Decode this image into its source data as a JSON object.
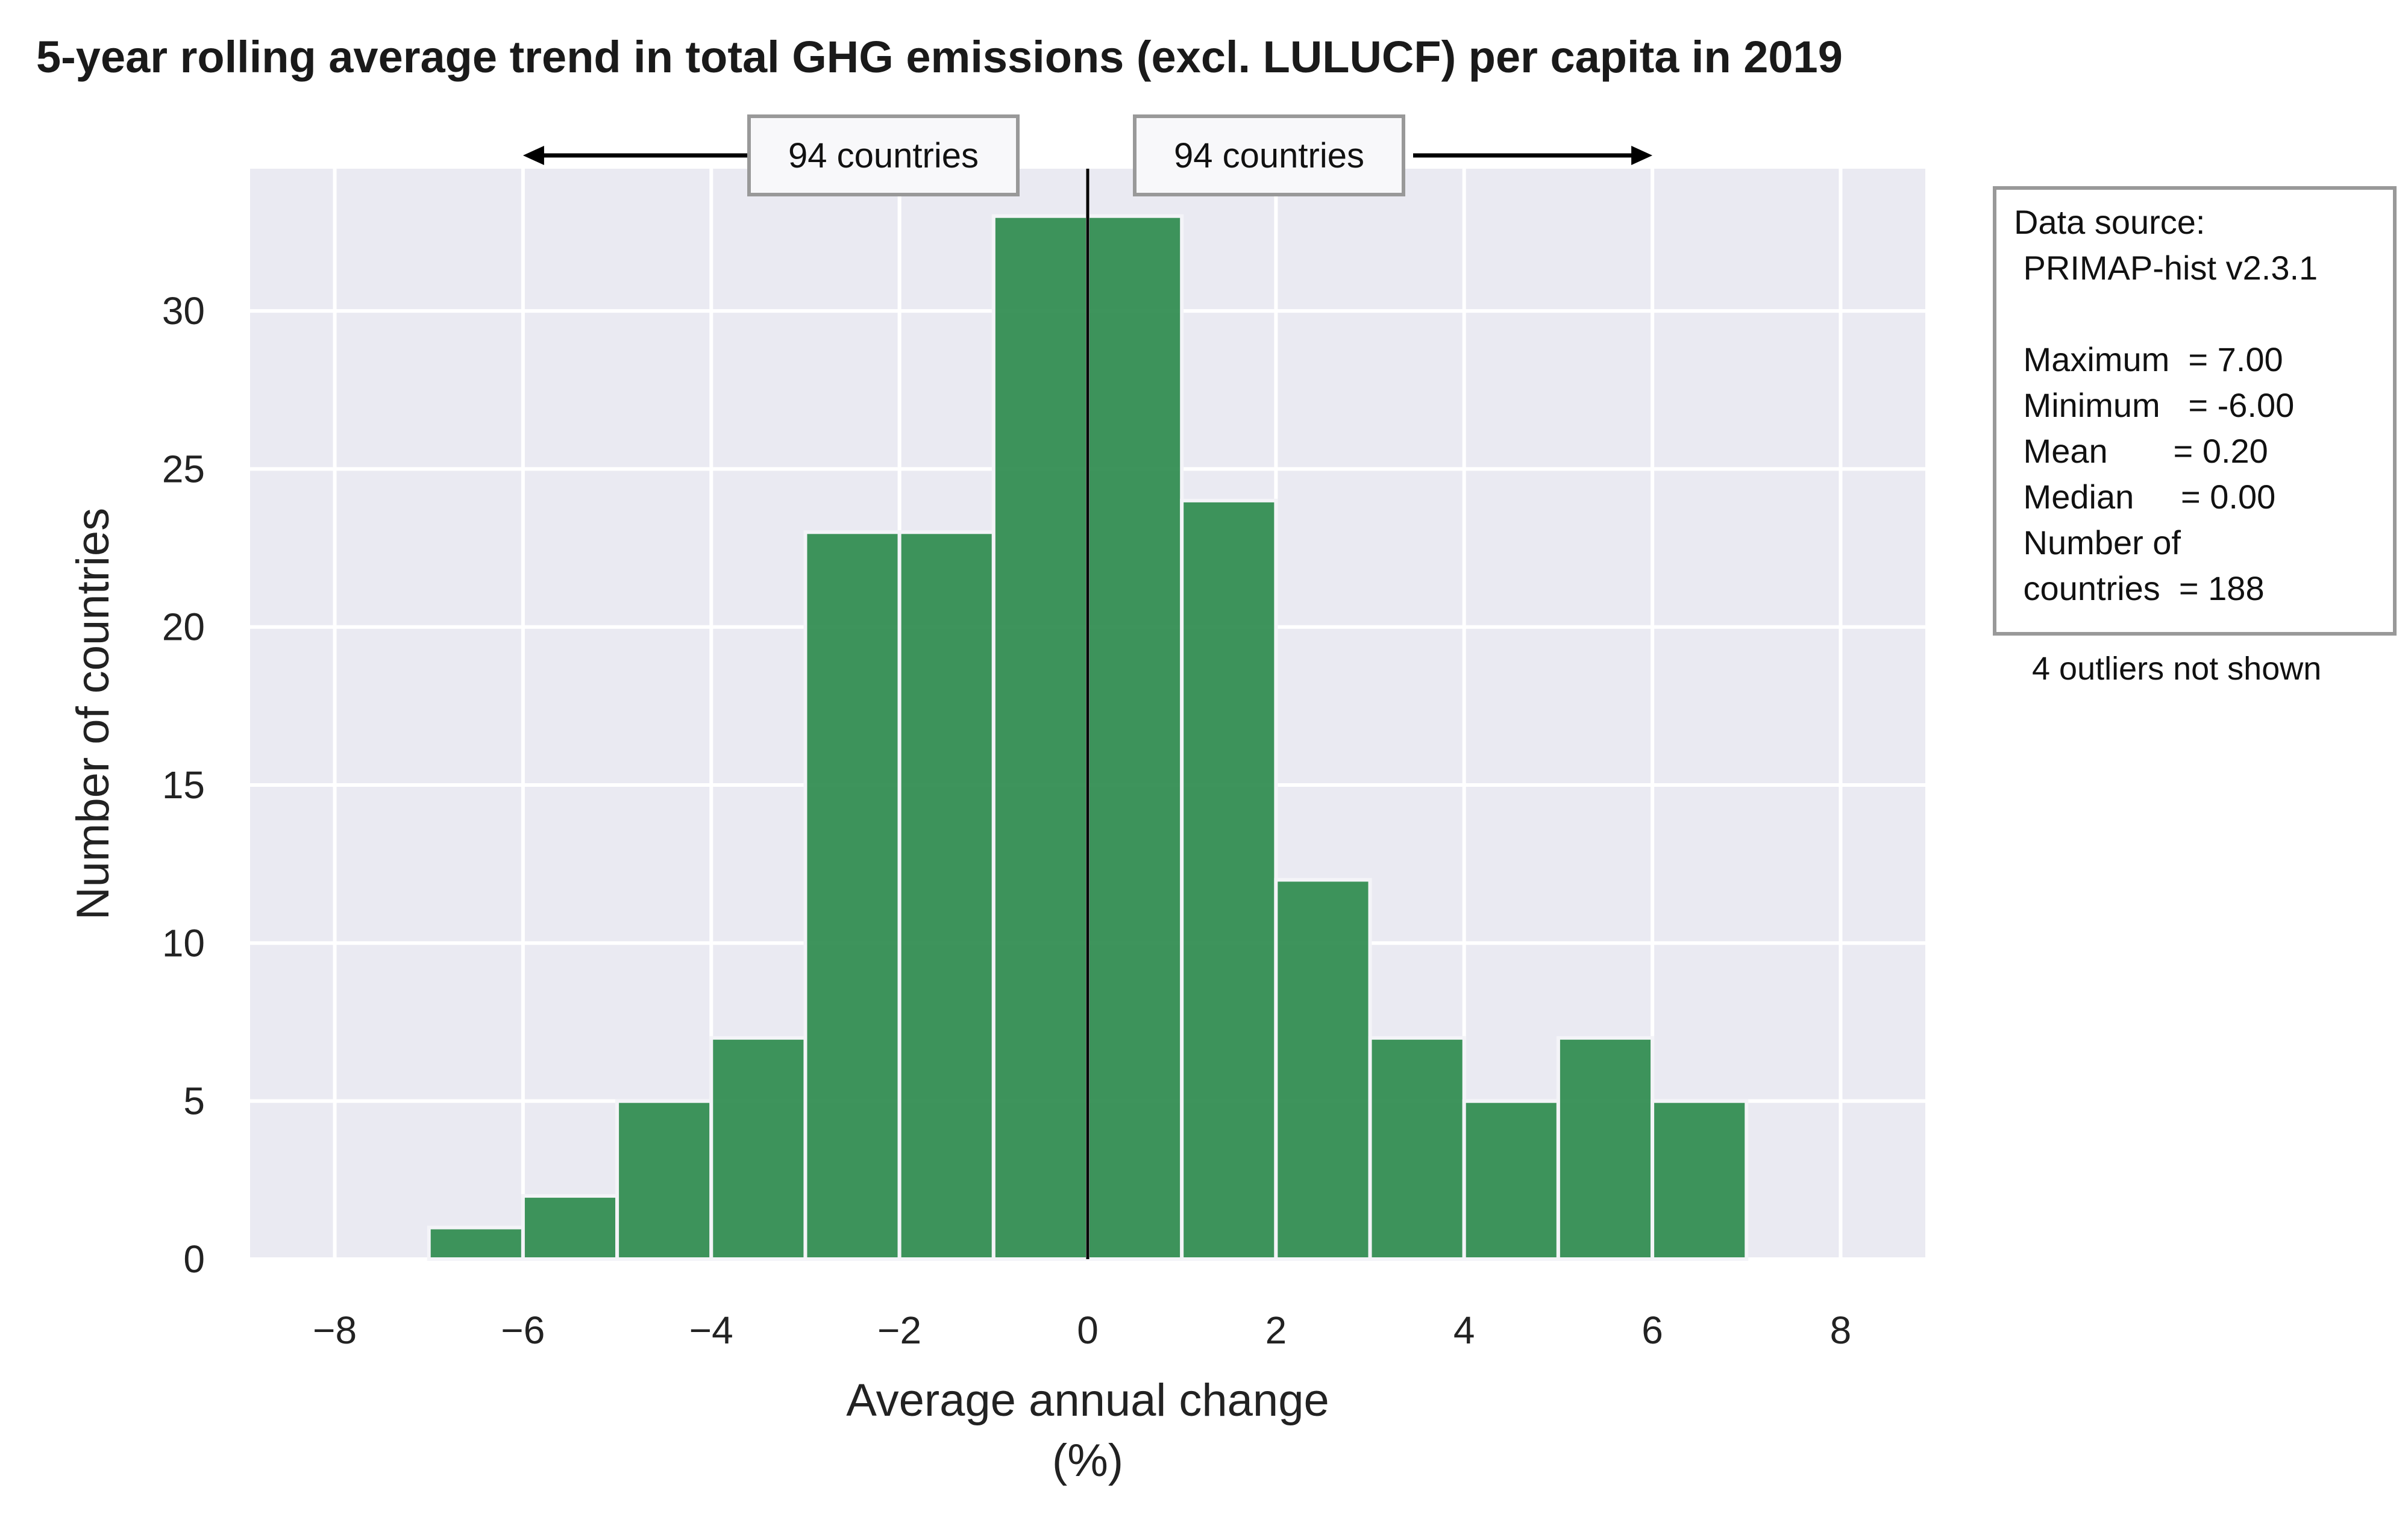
{
  "chart_data": {
    "type": "bar",
    "title": "5-year rolling average trend in total GHG emissions (excl. LULUCF) per capita in 2019",
    "xlabel": [
      "Average annual change",
      "(%)"
    ],
    "ylabel": "Number of countries",
    "xlim": [
      -8.9,
      8.9
    ],
    "ylim": [
      0,
      34.5
    ],
    "xticks": [
      -8,
      -6,
      -4,
      -2,
      0,
      2,
      4,
      6,
      8
    ],
    "xtick_labels": [
      "−8",
      "−6",
      "−4",
      "−2",
      "0",
      "2",
      "4",
      "6",
      "8"
    ],
    "yticks": [
      0,
      5,
      10,
      15,
      20,
      25,
      30
    ],
    "ytick_labels": [
      "0",
      "5",
      "10",
      "15",
      "20",
      "25",
      "30"
    ],
    "grid": true,
    "bar_color": "#2e8b4e",
    "background_color": "#eaeaf2",
    "reference_line_x": 0,
    "bins": [
      {
        "start": -7.0,
        "end": -6.0,
        "count": 1
      },
      {
        "start": -6.0,
        "end": -5.0,
        "count": 2
      },
      {
        "start": -5.0,
        "end": -4.0,
        "count": 5
      },
      {
        "start": -4.0,
        "end": -3.0,
        "count": 7
      },
      {
        "start": -3.0,
        "end": -2.0,
        "count": 23
      },
      {
        "start": -2.0,
        "end": -1.0,
        "count": 23
      },
      {
        "start": -1.0,
        "end": 0.0,
        "count": 33
      },
      {
        "start": 0.0,
        "end": 1.0,
        "count": 33
      },
      {
        "start": 1.0,
        "end": 2.0,
        "count": 24
      },
      {
        "start": 2.0,
        "end": 3.0,
        "count": 12
      },
      {
        "start": 3.0,
        "end": 4.0,
        "count": 7
      },
      {
        "start": 4.0,
        "end": 5.0,
        "count": 5
      },
      {
        "start": 5.0,
        "end": 6.0,
        "count": 7
      },
      {
        "start": 6.0,
        "end": 7.0,
        "count": 5
      }
    ],
    "annotations": {
      "left_count": "94 countries",
      "right_count": "94 countries",
      "left_arrow_to_x": -6,
      "right_arrow_to_x": 6
    },
    "info_box": {
      "lines": [
        "Data source:",
        " PRIMAP-hist v2.3.1",
        "",
        " Maximum  = 7.00",
        " Minimum   = -6.00",
        " Mean       = 0.20",
        " Median     = 0.00",
        " Number of",
        " countries  = 188"
      ],
      "footnote": "4 outliers not shown"
    }
  }
}
